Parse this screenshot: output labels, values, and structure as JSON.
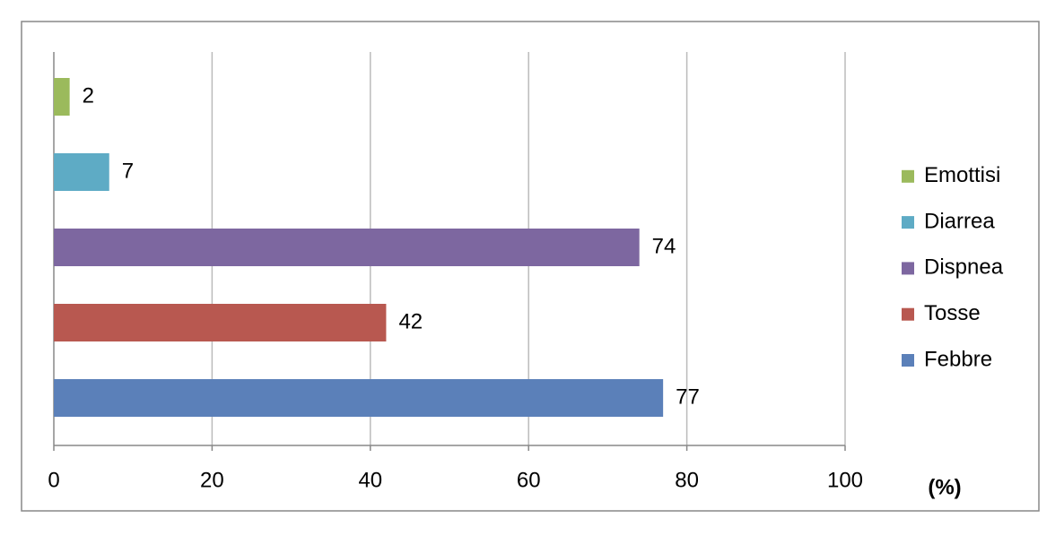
{
  "chart_data": {
    "type": "bar",
    "orientation": "horizontal",
    "categories": [
      "Febbre",
      "Tosse",
      "Dispnea",
      "Diarrea",
      "Emottisi"
    ],
    "values": [
      77,
      42,
      74,
      7,
      2
    ],
    "colors": [
      "#5b80b9",
      "#b85850",
      "#7d67a0",
      "#5eabc5",
      "#9bba5c"
    ],
    "xlim": [
      0,
      100
    ],
    "xticks": [
      0,
      20,
      40,
      60,
      80,
      100
    ],
    "xlabel": "(%)",
    "grid": true,
    "legend": "right"
  }
}
